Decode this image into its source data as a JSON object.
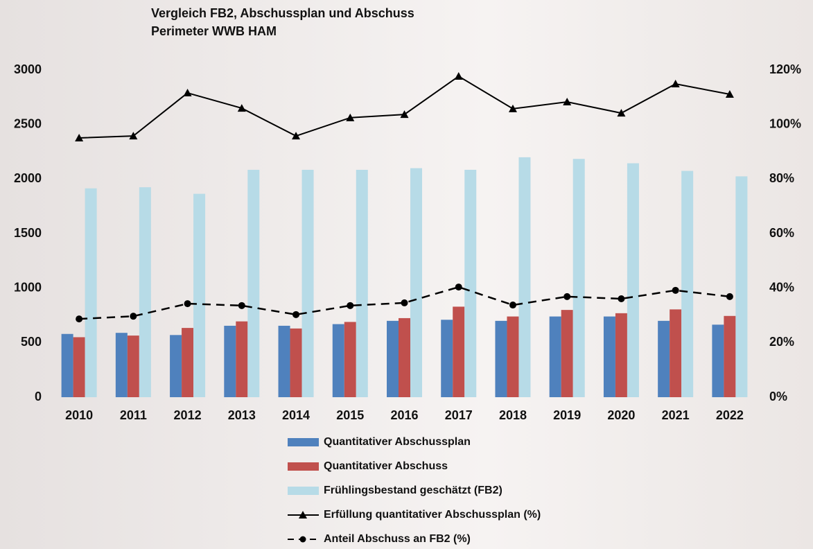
{
  "chart_data": {
    "type": "bar",
    "title": "Vergleich FB2, Abschussplan und Abschuss",
    "subtitle": "Perimeter WWB HAM",
    "categories": [
      "2010",
      "2011",
      "2012",
      "2013",
      "2014",
      "2015",
      "2016",
      "2017",
      "2018",
      "2019",
      "2020",
      "2021",
      "2022"
    ],
    "series": [
      {
        "name": "Quantitativer Abschussplan",
        "type": "bar",
        "color": "#4f81bd",
        "values": [
          580,
          590,
          570,
          655,
          655,
          670,
          700,
          710,
          700,
          740,
          740,
          700,
          665
        ]
      },
      {
        "name": "Quantitativer Abschuss",
        "type": "bar",
        "color": "#c0504d",
        "values": [
          550,
          565,
          635,
          695,
          630,
          690,
          725,
          830,
          740,
          800,
          770,
          805,
          745
        ]
      },
      {
        "name": "Frühlingsbestand geschätzt (FB2)",
        "type": "bar",
        "color": "#b7dbe7",
        "values": [
          1915,
          1925,
          1865,
          2085,
          2085,
          2085,
          2100,
          2085,
          2200,
          2185,
          2145,
          2075,
          2025
        ]
      },
      {
        "name": "Erfüllung quantitativer Abschussplan (%)",
        "type": "line",
        "axis": "y2",
        "color": "#000000",
        "marker": "triangle",
        "dashed": false,
        "values": [
          95.1,
          95.8,
          111.6,
          106.0,
          95.8,
          102.5,
          103.7,
          117.7,
          105.8,
          108.3,
          104.2,
          114.9,
          111.1
        ]
      },
      {
        "name": "Anteil Abschuss an  FB2 (%)",
        "type": "line",
        "axis": "y2",
        "color": "#000000",
        "marker": "circle",
        "dashed": true,
        "values": [
          28.7,
          29.7,
          34.3,
          33.6,
          30.3,
          33.6,
          34.6,
          40.4,
          33.8,
          36.9,
          36.1,
          39.2,
          36.9
        ]
      }
    ],
    "ylim": [
      0,
      3000
    ],
    "yticks": [
      0,
      500,
      1000,
      1500,
      2000,
      2500,
      3000
    ],
    "y2lim": [
      0,
      120
    ],
    "y2ticks": [
      {
        "value": 0,
        "label": "0%"
      },
      {
        "value": 20,
        "label": "20%"
      },
      {
        "value": 40,
        "label": "40%"
      },
      {
        "value": 60,
        "label": "60%"
      },
      {
        "value": 80,
        "label": "80%"
      },
      {
        "value": 100,
        "label": "100%"
      },
      {
        "value": 120,
        "label": "120%"
      }
    ],
    "grid": false
  }
}
